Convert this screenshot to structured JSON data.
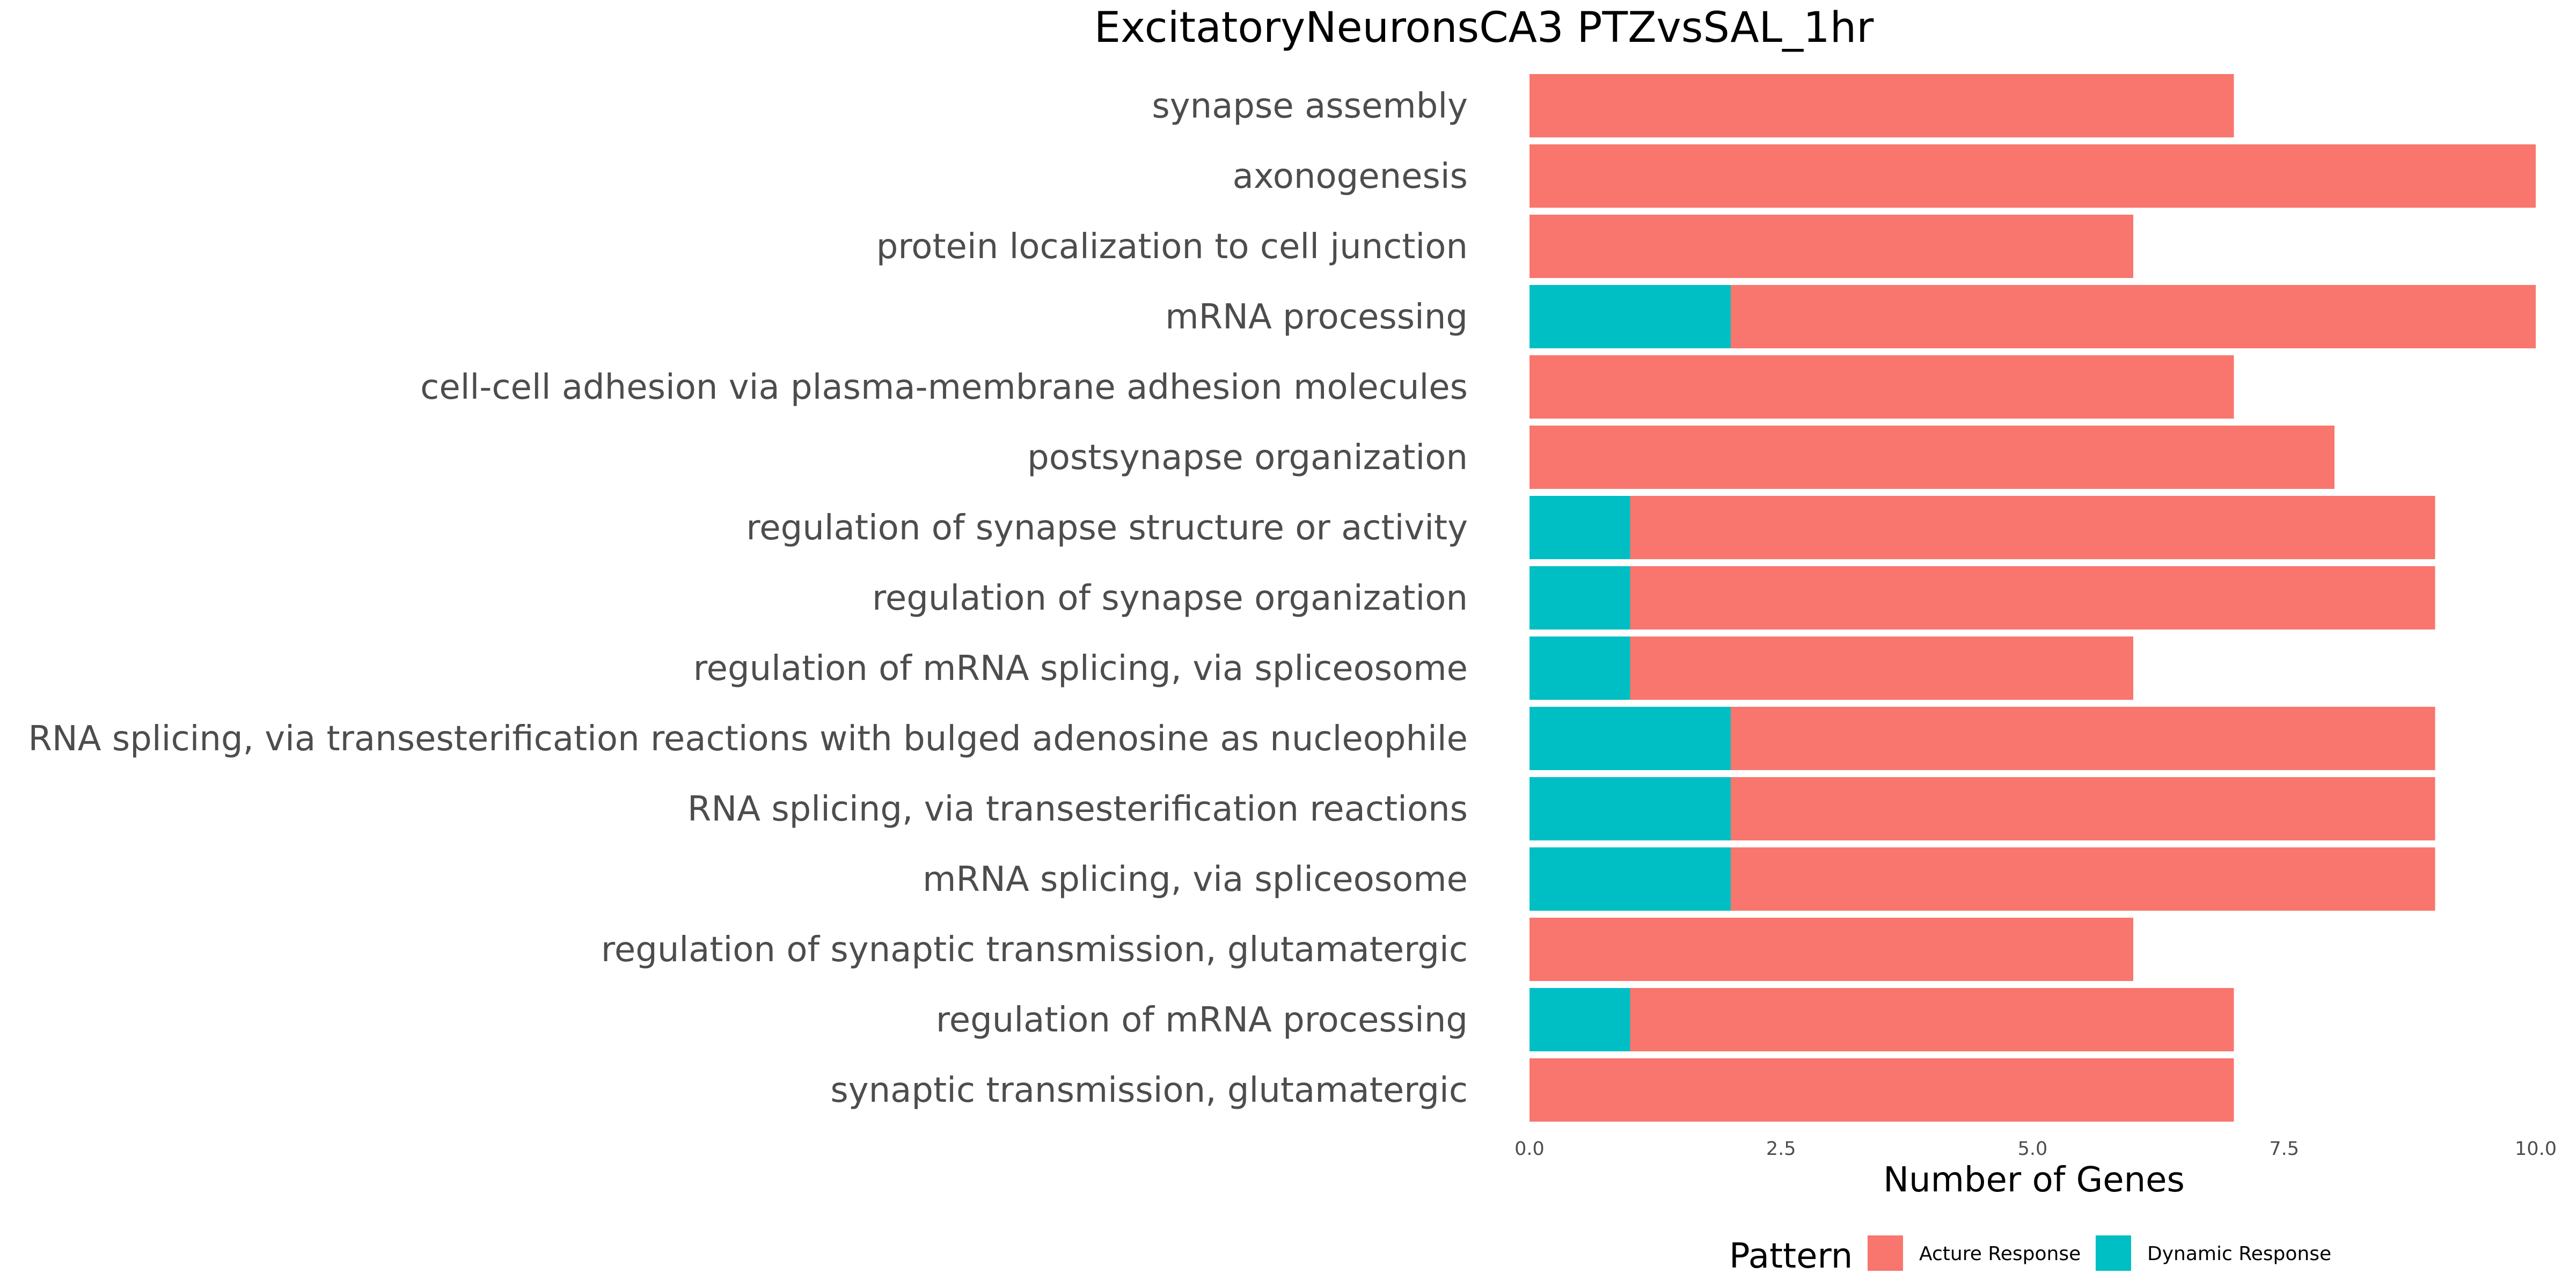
{
  "chart_data": {
    "type": "bar",
    "orientation": "horizontal",
    "stacked": true,
    "title": "ExcitatoryNeuronsCA3 PTZvsSAL_1hr",
    "xlabel": "Number of Genes",
    "ylabel": "",
    "xlim": [
      0,
      10
    ],
    "xticks": [
      0,
      2.5,
      5,
      7.5,
      10
    ],
    "xtick_labels": [
      "0.0",
      "2.5",
      "5.0",
      "7.5",
      "10.0"
    ],
    "grid": false,
    "legend_position": "bottom",
    "legend_title": "Pattern",
    "categories": [
      "synapse assembly",
      "axonogenesis",
      "protein localization to cell junction",
      "mRNA processing",
      "cell-cell adhesion via plasma-membrane adhesion molecules",
      "postsynapse organization",
      "regulation of synapse structure or activity",
      "regulation of synapse organization",
      "regulation of mRNA splicing, via spliceosome",
      "RNA splicing, via transesterification reactions with bulged adenosine as nucleophile",
      "RNA splicing, via transesterification reactions",
      "mRNA splicing, via spliceosome",
      "regulation of synaptic transmission, glutamatergic",
      "regulation of mRNA processing",
      "synaptic transmission, glutamatergic"
    ],
    "series": [
      {
        "name": "Dynamic Response",
        "color": "#00BFC4",
        "values": [
          0,
          0,
          0,
          2,
          0,
          0,
          1,
          1,
          1,
          2,
          2,
          2,
          0,
          1,
          0
        ]
      },
      {
        "name": "Acture Response",
        "color": "#F8766D",
        "values": [
          7,
          10,
          6,
          8,
          7,
          8,
          8,
          8,
          5,
          7,
          7,
          7,
          6,
          6,
          7
        ]
      }
    ],
    "legend_order": [
      "Acture Response",
      "Dynamic Response"
    ]
  }
}
